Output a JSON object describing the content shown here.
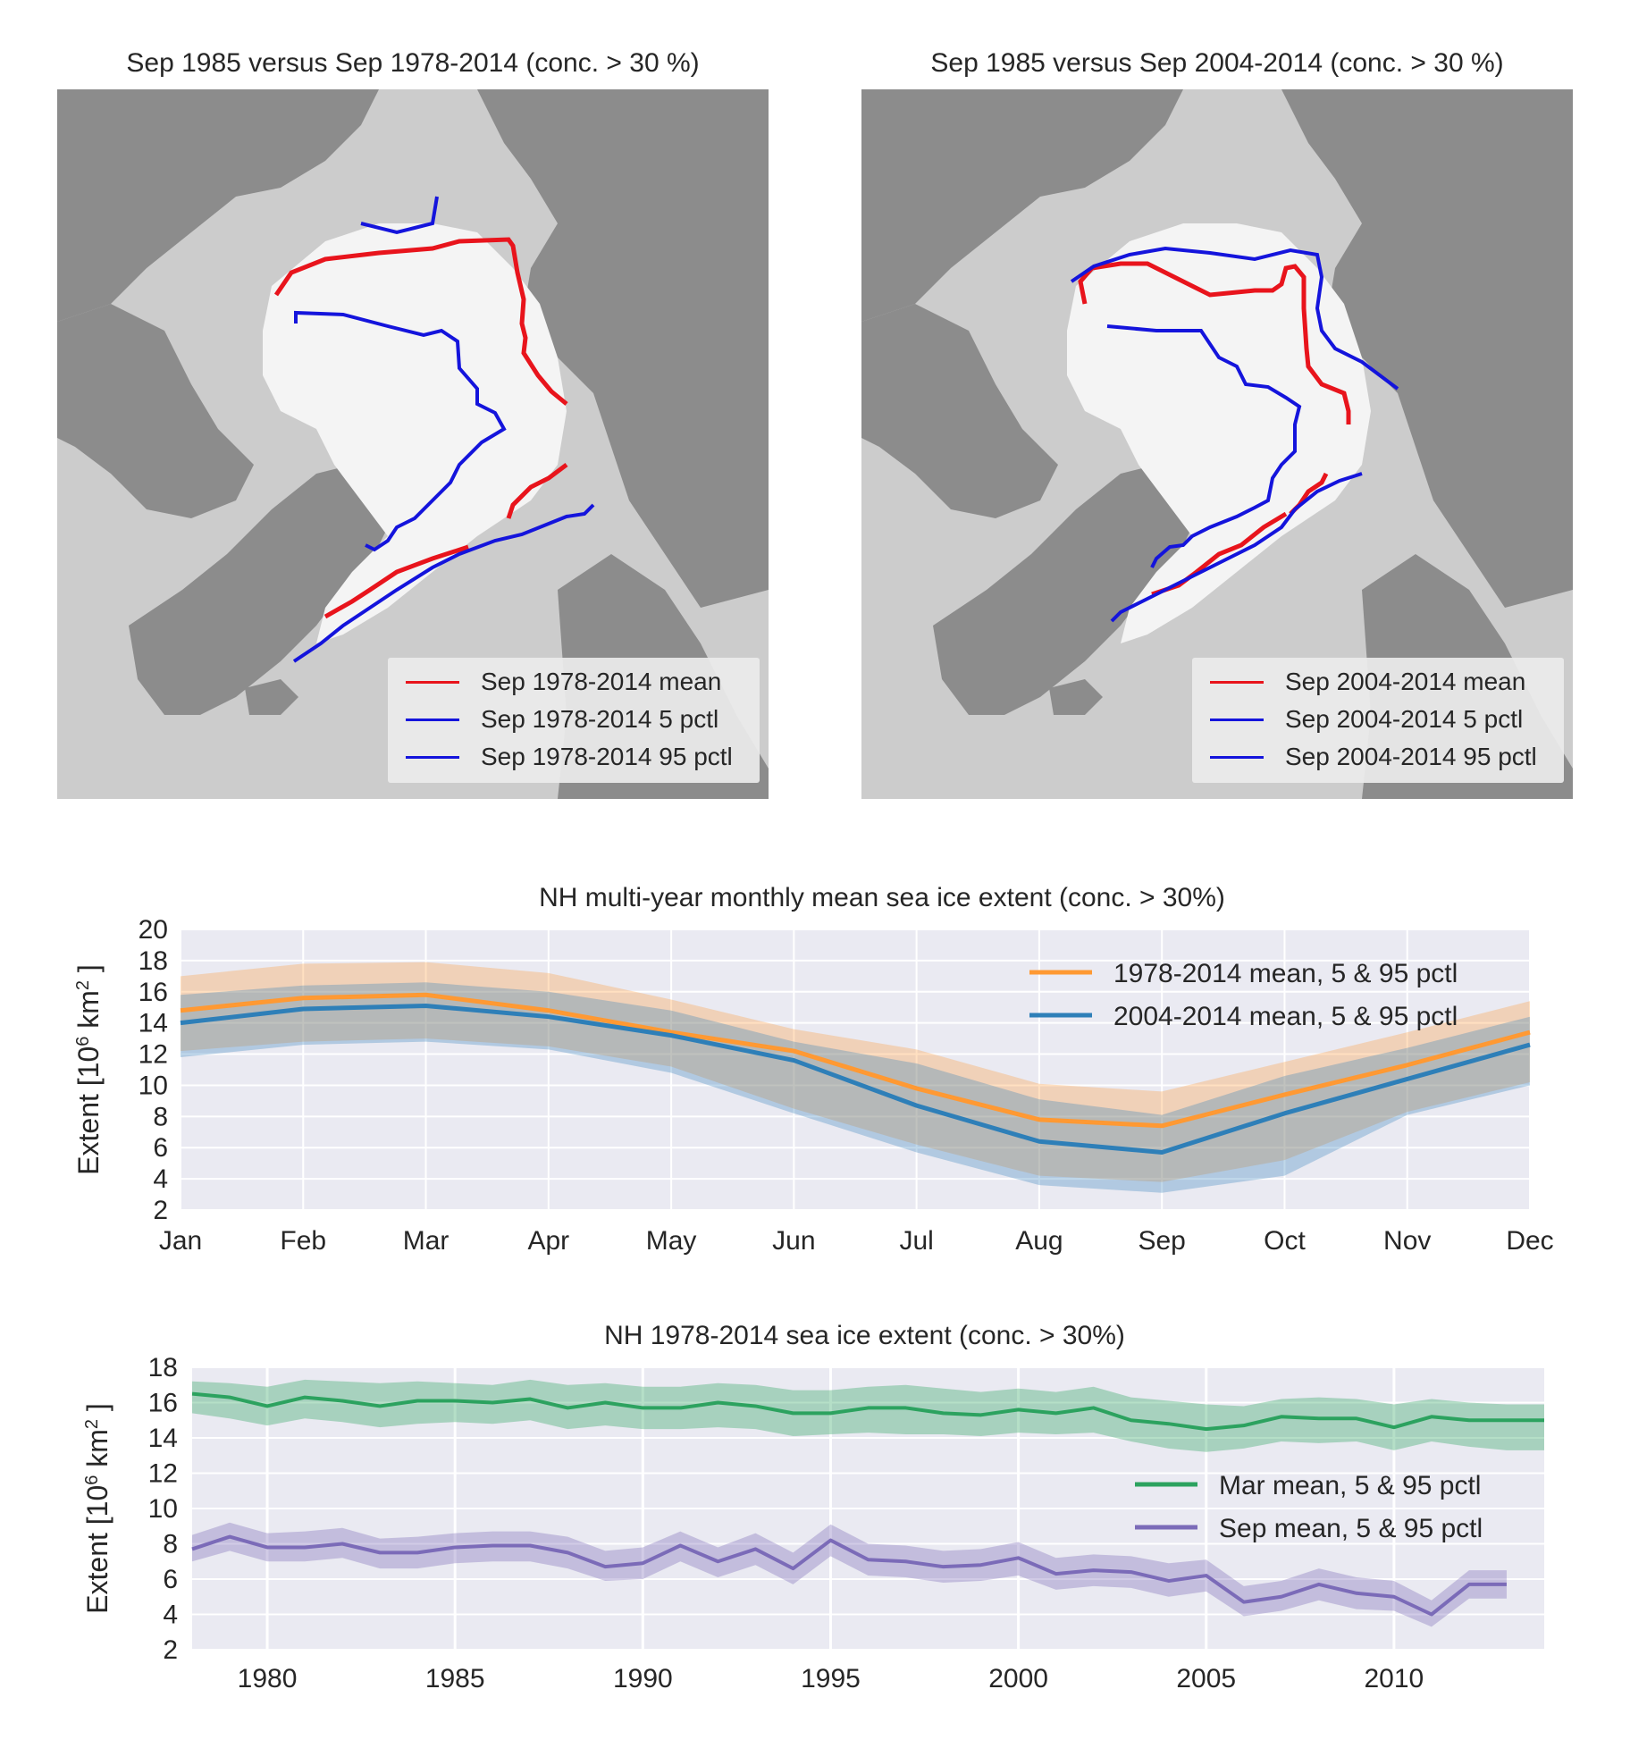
{
  "maps": [
    {
      "title": "Sep 1985 versus Sep 1978-2014 (conc. > 30 %)",
      "legend": [
        {
          "label": "Sep 1978-2014 mean",
          "color": "#e8141c"
        },
        {
          "label": "Sep 1978-2014 5 pctl",
          "color": "#1414dc"
        },
        {
          "label": "Sep 1978-2014 95 pctl",
          "color": "#1414dc"
        }
      ]
    },
    {
      "title": "Sep 1985 versus Sep 2004-2014 (conc. > 30 %)",
      "legend": [
        {
          "label": "Sep 2004-2014 mean",
          "color": "#e8141c"
        },
        {
          "label": "Sep 2004-2014 5 pctl",
          "color": "#1414dc"
        },
        {
          "label": "Sep 2004-2014 95 pctl",
          "color": "#1414dc"
        }
      ]
    }
  ],
  "map_colors": {
    "land": "#8c8c8c",
    "ocean": "#cccccc",
    "ice": "#f4f4f4",
    "mean_line": "#e8141c",
    "pctl_line": "#1414dc"
  },
  "chart_data": [
    {
      "type": "line",
      "title": "NH multi-year monthly mean sea ice extent (conc. > 30%)",
      "ylabel_prefix": "Extent [10",
      "ylabel_exp": "6",
      "ylabel_suffix": " km",
      "ylabel_exp2": "2",
      "ylabel_close": " ]",
      "categories": [
        "Jan",
        "Feb",
        "Mar",
        "Apr",
        "May",
        "Jun",
        "Jul",
        "Aug",
        "Sep",
        "Oct",
        "Nov",
        "Dec"
      ],
      "ylim": [
        2,
        20
      ],
      "yticks": [
        2,
        4,
        6,
        8,
        10,
        12,
        14,
        16,
        18,
        20
      ],
      "grid": true,
      "legend_position": "top-right",
      "series": [
        {
          "name": "1978-2014 mean, 5 & 95 pctl",
          "color": "#ff9933",
          "mean": [
            14.8,
            15.6,
            15.8,
            14.8,
            13.4,
            12.2,
            9.8,
            7.8,
            7.4,
            9.4,
            11.3,
            13.4
          ],
          "p5": [
            12.2,
            12.8,
            13.0,
            12.5,
            11.2,
            8.5,
            6.2,
            4.2,
            3.8,
            5.2,
            8.3,
            10.2
          ],
          "p95": [
            17.0,
            17.8,
            17.9,
            17.2,
            15.5,
            13.6,
            12.3,
            10.1,
            9.6,
            11.5,
            13.4,
            15.4
          ]
        },
        {
          "name": "2004-2014 mean, 5 & 95 pctl",
          "color": "#2e7fb8",
          "mean": [
            14.0,
            14.9,
            15.1,
            14.4,
            13.2,
            11.6,
            8.7,
            6.4,
            5.7,
            8.2,
            10.4,
            12.6
          ],
          "p5": [
            11.8,
            12.6,
            12.8,
            12.3,
            10.8,
            8.2,
            5.7,
            3.6,
            3.1,
            4.2,
            8.1,
            10.0
          ],
          "p95": [
            15.8,
            16.4,
            16.6,
            16.0,
            14.8,
            12.8,
            11.4,
            9.1,
            8.1,
            10.6,
            12.4,
            14.4
          ]
        }
      ]
    },
    {
      "type": "line",
      "title": "NH 1978-2014 sea ice extent (conc. > 30%)",
      "ylabel_prefix": "Extent [10",
      "ylabel_exp": "6",
      "ylabel_suffix": " km",
      "ylabel_exp2": "2",
      "ylabel_close": " ]",
      "xlim": [
        1978,
        2014
      ],
      "xticks": [
        1980,
        1985,
        1990,
        1995,
        2000,
        2005,
        2010
      ],
      "ylim": [
        2,
        18
      ],
      "yticks": [
        2,
        4,
        6,
        8,
        10,
        12,
        14,
        16,
        18
      ],
      "grid": true,
      "legend_position": "center-right",
      "series": [
        {
          "name": "Mar mean, 5 & 95 pctl",
          "color": "#2ca25f",
          "x": [
            1978,
            1979,
            1980,
            1981,
            1982,
            1983,
            1984,
            1985,
            1986,
            1987,
            1988,
            1989,
            1990,
            1991,
            1992,
            1993,
            1994,
            1995,
            1996,
            1997,
            1998,
            1999,
            2000,
            2001,
            2002,
            2003,
            2004,
            2005,
            2006,
            2007,
            2008,
            2009,
            2010,
            2011,
            2012,
            2013,
            2014
          ],
          "mean": [
            16.5,
            16.3,
            15.8,
            16.3,
            16.1,
            15.8,
            16.1,
            16.1,
            16.0,
            16.2,
            15.7,
            16.0,
            15.7,
            15.7,
            16.0,
            15.8,
            15.4,
            15.4,
            15.7,
            15.7,
            15.4,
            15.3,
            15.6,
            15.4,
            15.7,
            15.0,
            14.8,
            14.5,
            14.7,
            15.2,
            15.1,
            15.1,
            14.6,
            15.2,
            15.0,
            15.0,
            15.0
          ],
          "p5": [
            15.4,
            15.1,
            14.7,
            15.1,
            14.9,
            14.6,
            14.8,
            14.9,
            14.8,
            15.0,
            14.5,
            14.7,
            14.5,
            14.5,
            14.6,
            14.5,
            14.1,
            14.2,
            14.3,
            14.2,
            14.2,
            14.1,
            14.3,
            14.2,
            14.3,
            13.8,
            13.4,
            13.2,
            13.4,
            13.8,
            13.7,
            13.8,
            13.3,
            13.8,
            13.5,
            13.3,
            13.3
          ],
          "p95": [
            17.2,
            17.1,
            16.9,
            17.3,
            17.2,
            17.1,
            17.2,
            17.1,
            17.0,
            17.3,
            17.0,
            17.1,
            16.9,
            16.9,
            17.1,
            17.0,
            16.7,
            16.7,
            16.9,
            17.0,
            16.8,
            16.6,
            16.8,
            16.6,
            16.9,
            16.3,
            16.1,
            15.9,
            15.8,
            16.2,
            16.3,
            16.2,
            15.9,
            16.2,
            16.0,
            15.9,
            15.9
          ]
        },
        {
          "name": "Sep mean, 5 & 95 pctl",
          "color": "#7b6bb8",
          "x": [
            1978,
            1979,
            1980,
            1981,
            1982,
            1983,
            1984,
            1985,
            1986,
            1987,
            1988,
            1989,
            1990,
            1991,
            1992,
            1993,
            1994,
            1995,
            1996,
            1997,
            1998,
            1999,
            2000,
            2001,
            2002,
            2003,
            2004,
            2005,
            2006,
            2007,
            2008,
            2009,
            2010,
            2011,
            2012,
            2013
          ],
          "mean": [
            7.7,
            8.4,
            7.8,
            7.8,
            8.0,
            7.5,
            7.5,
            7.8,
            7.9,
            7.9,
            7.5,
            6.7,
            6.9,
            7.9,
            7.0,
            7.7,
            6.6,
            8.2,
            7.1,
            7.0,
            6.7,
            6.8,
            7.2,
            6.3,
            6.5,
            6.4,
            5.9,
            6.2,
            4.7,
            5.0,
            5.7,
            5.2,
            5.0,
            4.0,
            5.7,
            5.7
          ],
          "p5": [
            7.0,
            7.6,
            7.0,
            7.0,
            7.2,
            6.6,
            6.6,
            6.9,
            7.0,
            7.0,
            6.6,
            5.9,
            6.0,
            7.0,
            6.1,
            6.8,
            5.7,
            7.3,
            6.2,
            6.1,
            5.8,
            5.9,
            6.2,
            5.4,
            5.6,
            5.5,
            5.0,
            5.3,
            3.9,
            4.2,
            4.8,
            4.3,
            4.2,
            3.3,
            4.9,
            4.9
          ],
          "p95": [
            8.5,
            9.2,
            8.6,
            8.7,
            8.9,
            8.3,
            8.4,
            8.6,
            8.7,
            8.7,
            8.4,
            7.6,
            7.8,
            8.7,
            7.8,
            8.6,
            7.5,
            9.1,
            8.0,
            7.9,
            7.6,
            7.7,
            8.1,
            7.2,
            7.4,
            7.3,
            6.9,
            7.1,
            5.6,
            5.9,
            6.6,
            6.1,
            5.9,
            4.8,
            6.5,
            6.5
          ]
        }
      ]
    }
  ]
}
